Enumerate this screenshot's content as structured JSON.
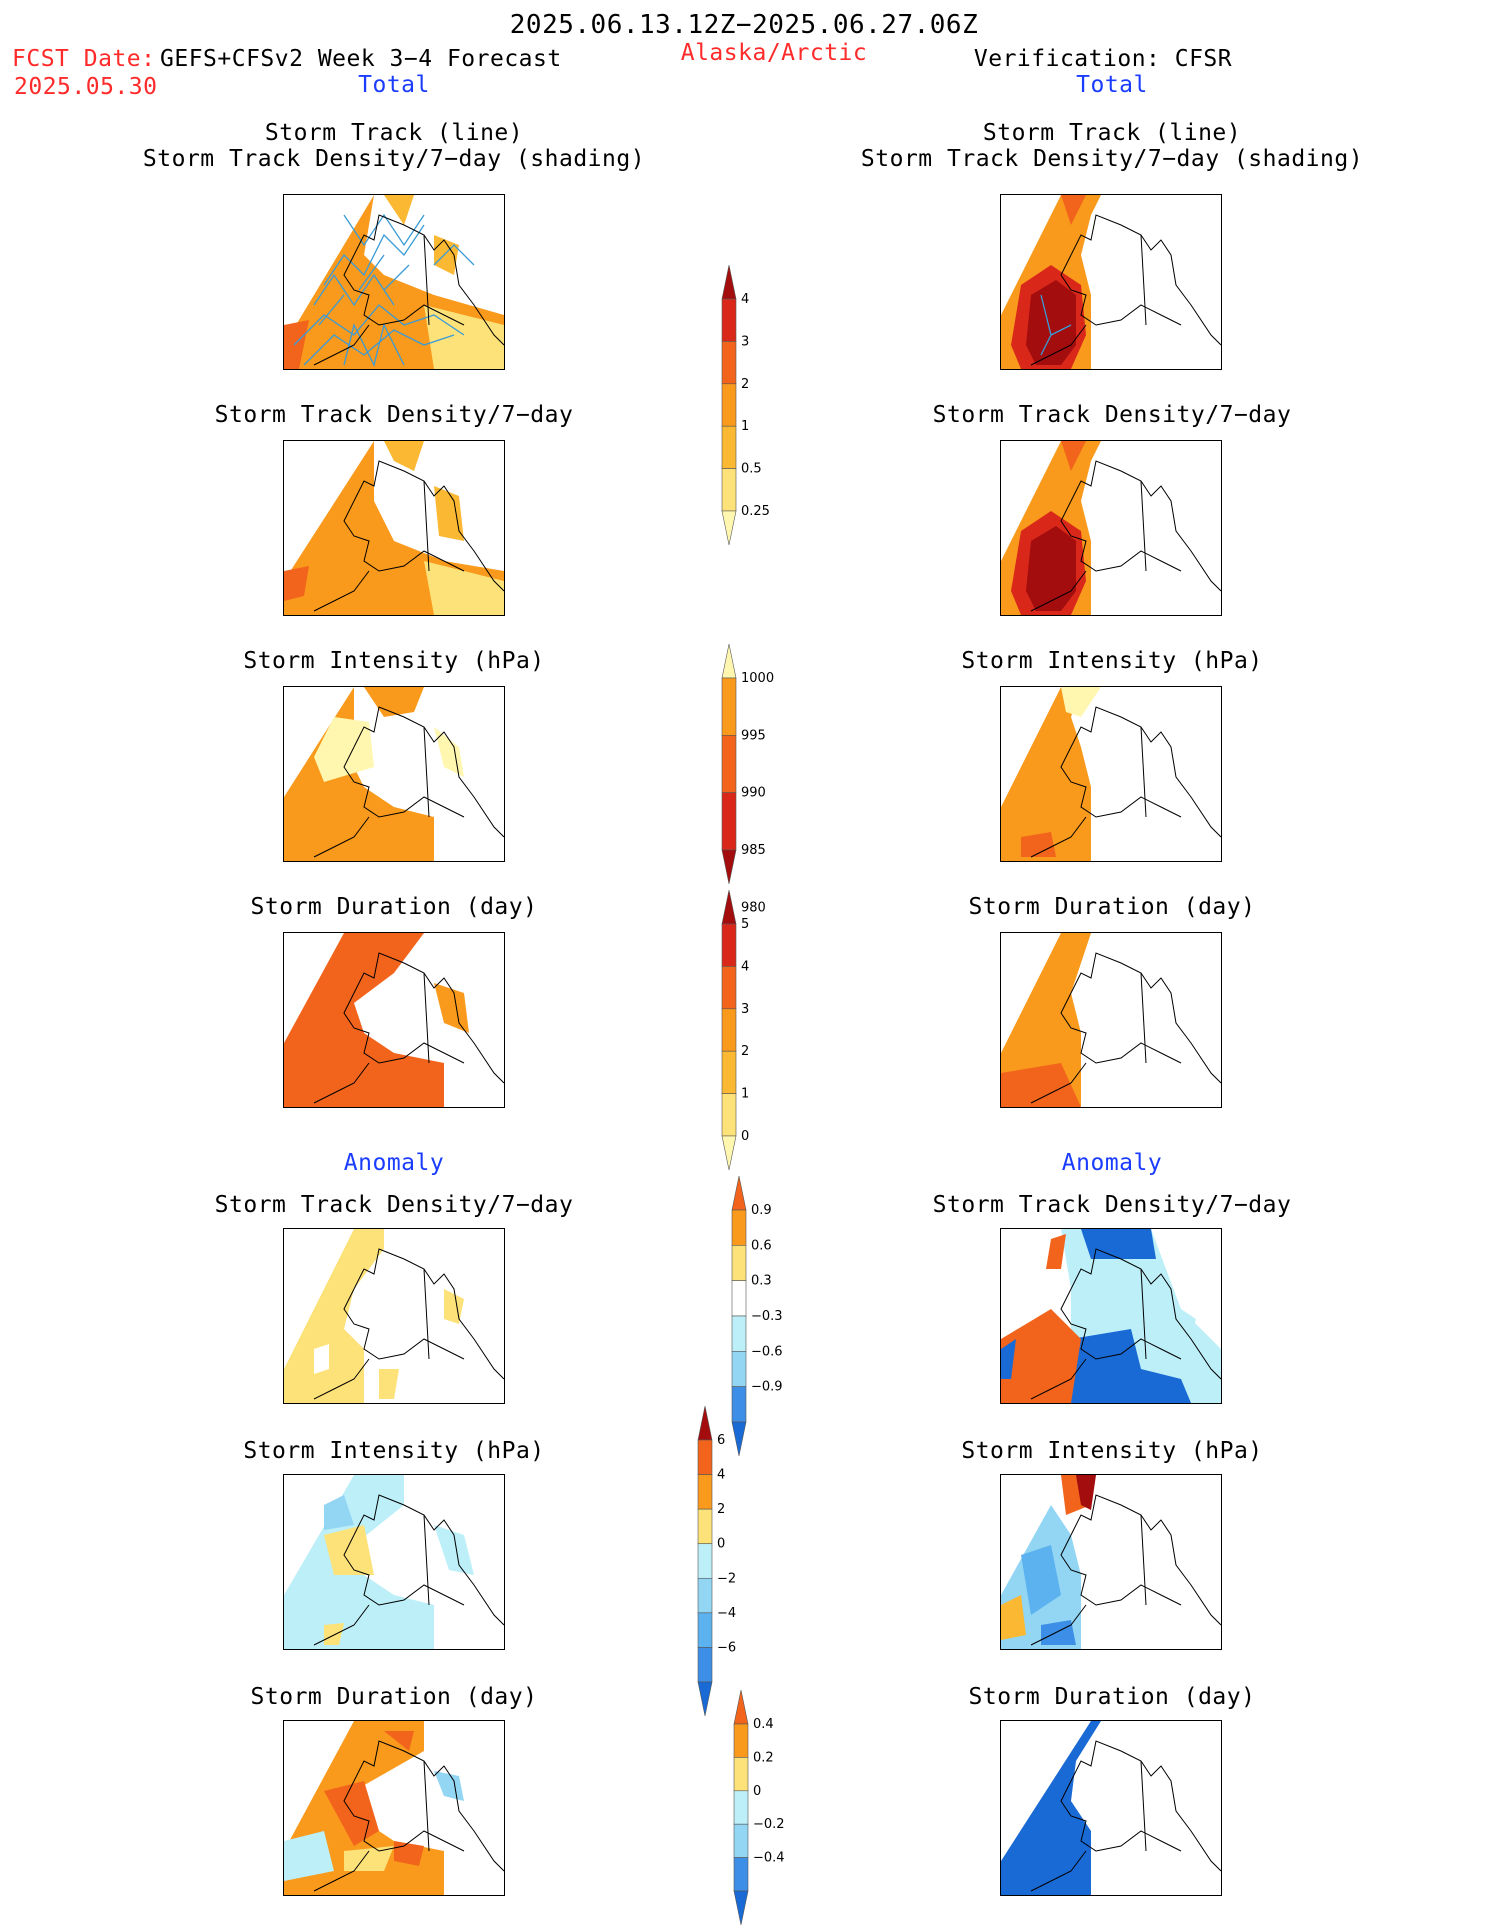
{
  "header": {
    "period": "2025.06.13.12Z−2025.06.27.06Z",
    "fcst_date_label": "FCST Date:",
    "fcst_model": "GEFS+CFSv2 Week 3−4 Forecast",
    "fcst_date": "2025.05.30",
    "region": "Alaska/Arctic",
    "verification": "Verification: CFSR"
  },
  "sections": {
    "total": "Total",
    "anomaly": "Anomaly"
  },
  "panel_titles": {
    "track_line": "Storm Track (line)",
    "track_density_shading": "Storm Track Density/7−day (shading)",
    "track_density": "Storm Track Density/7−day",
    "intensity": "Storm Intensity (hPa)",
    "duration": "Storm Duration (day)"
  },
  "colors": {
    "c1": "#fff7b0",
    "c2": "#fde27a",
    "c3": "#fbb832",
    "c4": "#f99a1c",
    "c5": "#f2641c",
    "c6": "#d9281a",
    "c7": "#a30d0d",
    "b1": "#bdeff8",
    "b2": "#92d6f4",
    "b3": "#5cb2ee",
    "b4": "#3c8ee6",
    "b5": "#1a6ad6",
    "b6": "#1448b0",
    "track": "#3a9bd6"
  },
  "colorbars": [
    {
      "id": "density",
      "labels": [
        "4",
        "3",
        "2",
        "1",
        "0.5",
        "0.25"
      ],
      "colors": [
        "#a30d0d",
        "#d9281a",
        "#f2641c",
        "#f99a1c",
        "#fbb832",
        "#fde27a",
        "#fff7b0"
      ]
    },
    {
      "id": "intensity",
      "labels": [
        "1000",
        "995",
        "990",
        "985",
        "980"
      ],
      "colors": [
        "#fff7b0",
        "#f99a1c",
        "#f2641c",
        "#d9281a",
        "#a30d0d"
      ]
    },
    {
      "id": "duration",
      "labels": [
        "5",
        "4",
        "3",
        "2",
        "1",
        "0"
      ],
      "colors": [
        "#a30d0d",
        "#d9281a",
        "#f2641c",
        "#f99a1c",
        "#fbb832",
        "#fde27a",
        "#fff7b0"
      ]
    },
    {
      "id": "anom_density",
      "labels": [
        "0.9",
        "0.6",
        "0.3",
        "−0.3",
        "−0.6",
        "−0.9"
      ],
      "colors": [
        "#f2641c",
        "#f99a1c",
        "#fde27a",
        "#ffffff",
        "#bdeff8",
        "#92d6f4",
        "#3c8ee6",
        "#1a6ad6"
      ]
    },
    {
      "id": "anom_intensity",
      "labels": [
        "6",
        "4",
        "2",
        "0",
        "−2",
        "−4",
        "−6"
      ],
      "colors": [
        "#a30d0d",
        "#f2641c",
        "#f99a1c",
        "#fde27a",
        "#bdeff8",
        "#92d6f4",
        "#5cb2ee",
        "#3c8ee6",
        "#1a6ad6"
      ]
    },
    {
      "id": "anom_duration",
      "labels": [
        "0.4",
        "0.2",
        "0",
        "−0.2",
        "−0.4"
      ],
      "colors": [
        "#f2641c",
        "#f99a1c",
        "#fde27a",
        "#bdeff8",
        "#92d6f4",
        "#3c8ee6",
        "#1a6ad6"
      ]
    }
  ]
}
